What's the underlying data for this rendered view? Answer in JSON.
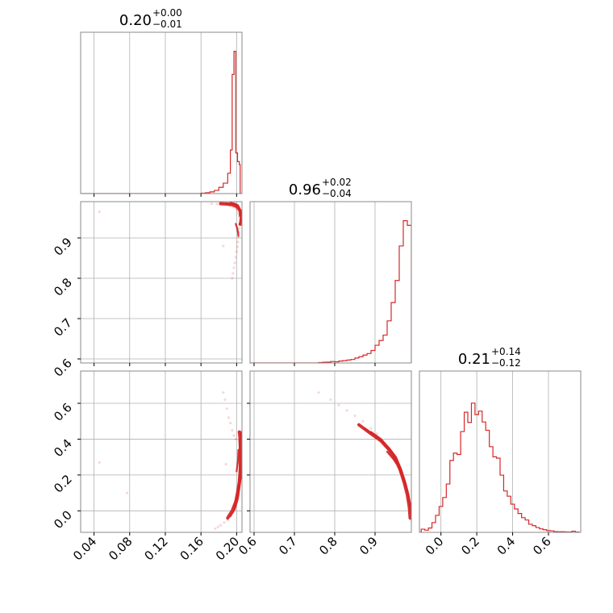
{
  "chart_data": {
    "type": "corner",
    "color": "#d62728",
    "grid": true,
    "parameters": [
      {
        "index": 0,
        "range": [
          0.025,
          0.206
        ],
        "ticks": [
          0.04,
          0.08,
          0.12,
          0.16,
          0.2
        ],
        "tick_labels": [
          "0.04",
          "0.08",
          "0.12",
          "0.16",
          "0.20"
        ],
        "title": {
          "median": "0.20",
          "upper": "+0.00",
          "lower": "−0.01"
        }
      },
      {
        "index": 1,
        "range": [
          0.59,
          0.99
        ],
        "ticks": [
          0.6,
          0.7,
          0.8,
          0.9
        ],
        "tick_labels": [
          "0.6",
          "0.7",
          "0.8",
          "0.9"
        ],
        "title": {
          "median": "0.96",
          "upper": "+0.02",
          "lower": "−0.04"
        }
      },
      {
        "index": 2,
        "range": [
          -0.12,
          0.78
        ],
        "ticks": [
          0.0,
          0.2,
          0.4,
          0.6
        ],
        "tick_labels": [
          "0.0",
          "0.2",
          "0.4",
          "0.6"
        ],
        "title": {
          "median": "0.21",
          "upper": "+0.14",
          "lower": "−0.12"
        }
      }
    ],
    "histograms": [
      {
        "parameter": 0,
        "bin_edges": [
          0.16,
          0.165,
          0.17,
          0.175,
          0.18,
          0.185,
          0.19,
          0.193,
          0.195,
          0.197,
          0.199,
          0.201,
          0.203,
          0.204,
          0.206
        ],
        "counts": [
          0.3,
          0.6,
          1.2,
          2.2,
          4.3,
          7.2,
          14.0,
          30.0,
          82.0,
          98.0,
          28.0,
          22.0,
          20.0,
          0.0
        ],
        "ymax": 100
      },
      {
        "parameter": 1,
        "bin_edges": [
          0.76,
          0.77,
          0.78,
          0.79,
          0.8,
          0.81,
          0.82,
          0.83,
          0.84,
          0.85,
          0.86,
          0.87,
          0.88,
          0.89,
          0.9,
          0.91,
          0.92,
          0.93,
          0.94,
          0.95,
          0.96,
          0.97,
          0.98,
          0.99
        ],
        "counts": [
          0.3,
          0.5,
          0.6,
          1.0,
          0.8,
          1.3,
          1.6,
          2.0,
          2.4,
          3.4,
          4.3,
          5.4,
          6.5,
          8.6,
          12.2,
          15.5,
          19.2,
          29.0,
          41.6,
          56.8,
          80.6,
          98.0,
          94.8
        ],
        "ymax": 100
      },
      {
        "parameter": 2,
        "bin_edges": [
          -0.11,
          -0.09,
          -0.07,
          -0.05,
          -0.03,
          -0.01,
          0.01,
          0.03,
          0.05,
          0.07,
          0.09,
          0.11,
          0.13,
          0.15,
          0.17,
          0.19,
          0.21,
          0.23,
          0.25,
          0.27,
          0.29,
          0.31,
          0.33,
          0.35,
          0.37,
          0.39,
          0.41,
          0.43,
          0.45,
          0.47,
          0.49,
          0.51,
          0.53,
          0.55,
          0.57,
          0.59,
          0.61,
          0.63,
          0.65,
          0.67,
          0.69,
          0.71,
          0.73,
          0.75,
          0.77
        ],
        "counts": [
          2.2,
          1.5,
          3.0,
          6.7,
          11.7,
          17.8,
          24.0,
          33.3,
          49.5,
          54.6,
          53.6,
          69.4,
          82.7,
          75.7,
          89.0,
          81.1,
          83.5,
          76.0,
          70.3,
          59.0,
          52.0,
          51.1,
          39.4,
          28.5,
          24.9,
          19.4,
          16.1,
          13.0,
          10.1,
          8.5,
          5.6,
          4.6,
          3.3,
          2.4,
          1.8,
          1.2,
          1.0,
          0.5,
          0.4,
          0.4,
          0.3,
          0.2,
          0.8,
          0.2
        ],
        "ymax": 100
      }
    ],
    "scatter_panels": [
      {
        "x_parameter": 0,
        "y_parameter": 1,
        "points": [
          [
            0.172,
            0.985
          ],
          [
            0.178,
            0.984
          ],
          [
            0.183,
            0.983
          ],
          [
            0.188,
            0.982
          ],
          [
            0.192,
            0.98
          ],
          [
            0.196,
            0.977
          ],
          [
            0.199,
            0.973
          ],
          [
            0.201,
            0.968
          ],
          [
            0.202,
            0.961
          ],
          [
            0.203,
            0.953
          ],
          [
            0.2035,
            0.944
          ],
          [
            0.2035,
            0.934
          ],
          [
            0.203,
            0.924
          ],
          [
            0.2025,
            0.914
          ],
          [
            0.202,
            0.902
          ],
          [
            0.2015,
            0.89
          ],
          [
            0.201,
            0.878
          ],
          [
            0.2,
            0.866
          ],
          [
            0.199,
            0.852
          ],
          [
            0.198,
            0.838
          ],
          [
            0.197,
            0.826
          ],
          [
            0.196,
            0.812
          ],
          [
            0.195,
            0.8
          ],
          [
            0.046,
            0.965
          ],
          [
            0.185,
            0.88
          ]
        ],
        "contours": [
          [
            [
              0.182,
              0.985
            ],
            [
              0.19,
              0.984
            ],
            [
              0.196,
              0.982
            ],
            [
              0.2,
              0.978
            ],
            [
              0.203,
              0.971
            ],
            [
              0.205,
              0.962
            ],
            [
              0.2055,
              0.952
            ],
            [
              0.205,
              0.942
            ],
            [
              0.204,
              0.934
            ]
          ],
          [
            [
              0.188,
              0.986
            ],
            [
              0.194,
              0.985
            ],
            [
              0.199,
              0.982
            ],
            [
              0.202,
              0.976
            ],
            [
              0.204,
              0.968
            ],
            [
              0.2045,
              0.958
            ],
            [
              0.2045,
              0.946
            ],
            [
              0.204,
              0.935
            ]
          ],
          [
            [
              0.193,
              0.987
            ],
            [
              0.198,
              0.985
            ],
            [
              0.2015,
              0.981
            ],
            [
              0.203,
              0.975
            ],
            [
              0.2035,
              0.966
            ],
            [
              0.2035,
              0.955
            ]
          ],
          [
            [
              0.199,
              0.935
            ],
            [
              0.2005,
              0.925
            ],
            [
              0.2015,
              0.915
            ],
            [
              0.202,
              0.905
            ]
          ]
        ]
      },
      {
        "x_parameter": 0,
        "y_parameter": 2,
        "points": [
          [
            0.185,
            0.66
          ],
          [
            0.187,
            0.62
          ],
          [
            0.189,
            0.57
          ],
          [
            0.191,
            0.52
          ],
          [
            0.193,
            0.49
          ],
          [
            0.195,
            0.45
          ],
          [
            0.197,
            0.42
          ],
          [
            0.199,
            0.4
          ],
          [
            0.2,
            0.05
          ],
          [
            0.198,
            0.02
          ],
          [
            0.196,
            -0.01
          ],
          [
            0.193,
            -0.03
          ],
          [
            0.19,
            -0.05
          ],
          [
            0.186,
            -0.065
          ],
          [
            0.182,
            -0.08
          ],
          [
            0.179,
            -0.09
          ],
          [
            0.176,
            -0.1
          ],
          [
            0.188,
            0.26
          ],
          [
            0.046,
            0.27
          ],
          [
            0.077,
            0.1
          ]
        ],
        "contours": [
          [
            [
              0.19,
              -0.04
            ],
            [
              0.195,
              0.0
            ],
            [
              0.199,
              0.05
            ],
            [
              0.201,
              0.1
            ],
            [
              0.203,
              0.16
            ],
            [
              0.204,
              0.22
            ],
            [
              0.2045,
              0.28
            ],
            [
              0.2045,
              0.34
            ],
            [
              0.204,
              0.4
            ],
            [
              0.203,
              0.44
            ]
          ],
          [
            [
              0.193,
              -0.03
            ],
            [
              0.198,
              0.01
            ],
            [
              0.2015,
              0.07
            ],
            [
              0.2035,
              0.14
            ],
            [
              0.2055,
              0.22
            ],
            [
              0.206,
              0.3
            ],
            [
              0.206,
              0.38
            ],
            [
              0.205,
              0.44
            ]
          ],
          [
            [
              0.197,
              0.02
            ],
            [
              0.2005,
              0.08
            ],
            [
              0.2025,
              0.15
            ],
            [
              0.2035,
              0.24
            ],
            [
              0.2035,
              0.33
            ],
            [
              0.203,
              0.4
            ]
          ],
          [
            [
              0.2,
              0.22
            ],
            [
              0.2015,
              0.28
            ],
            [
              0.202,
              0.34
            ]
          ]
        ]
      },
      {
        "x_parameter": 1,
        "y_parameter": 2,
        "points": [
          [
            0.76,
            0.66
          ],
          [
            0.79,
            0.62
          ],
          [
            0.81,
            0.59
          ],
          [
            0.83,
            0.56
          ],
          [
            0.85,
            0.53
          ],
          [
            0.87,
            0.5
          ],
          [
            0.89,
            0.46
          ],
          [
            0.905,
            0.43
          ],
          [
            0.99,
            -0.05
          ],
          [
            0.99,
            -0.02
          ]
        ],
        "contours": [
          [
            [
              0.86,
              0.48
            ],
            [
              0.89,
              0.43
            ],
            [
              0.915,
              0.39
            ],
            [
              0.935,
              0.34
            ],
            [
              0.95,
              0.29
            ],
            [
              0.962,
              0.23
            ],
            [
              0.972,
              0.16
            ],
            [
              0.98,
              0.09
            ],
            [
              0.985,
              0.02
            ],
            [
              0.987,
              -0.04
            ]
          ],
          [
            [
              0.875,
              0.46
            ],
            [
              0.9,
              0.42
            ],
            [
              0.925,
              0.37
            ],
            [
              0.943,
              0.32
            ],
            [
              0.958,
              0.26
            ],
            [
              0.97,
              0.19
            ],
            [
              0.979,
              0.12
            ],
            [
              0.986,
              0.05
            ],
            [
              0.99,
              -0.02
            ]
          ],
          [
            [
              0.89,
              0.44
            ],
            [
              0.915,
              0.4
            ],
            [
              0.935,
              0.35
            ],
            [
              0.952,
              0.3
            ],
            [
              0.965,
              0.23
            ],
            [
              0.975,
              0.16
            ],
            [
              0.983,
              0.09
            ],
            [
              0.988,
              0.02
            ]
          ],
          [
            [
              0.93,
              0.33
            ],
            [
              0.945,
              0.29
            ],
            [
              0.957,
              0.25
            ],
            [
              0.967,
              0.2
            ],
            [
              0.976,
              0.14
            ]
          ]
        ]
      }
    ]
  }
}
